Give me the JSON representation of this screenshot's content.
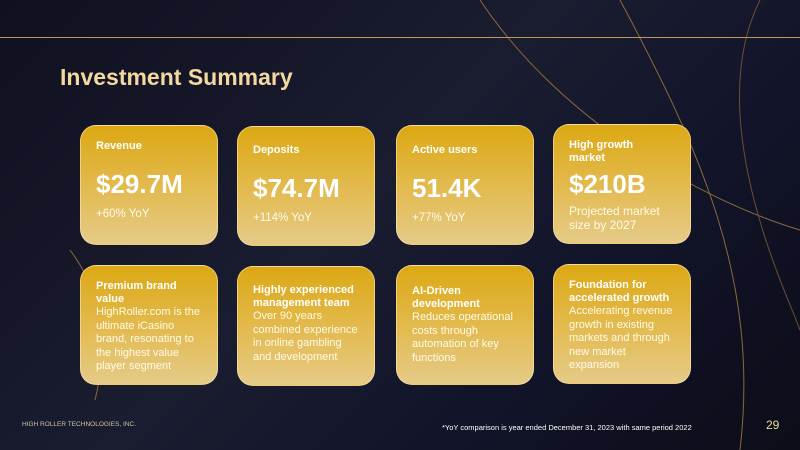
{
  "title": "Investment Summary",
  "metrics": [
    {
      "label": "Revenue",
      "value": "$29.7M",
      "sub": "+60% YoY"
    },
    {
      "label": "Deposits",
      "value": "$74.7M",
      "sub": "+114% YoY"
    },
    {
      "label": "Active users",
      "value": "51.4K",
      "sub": "+77% YoY"
    },
    {
      "label": "High growth market",
      "value": "$210B",
      "sub": "Projected market size by 2027"
    }
  ],
  "highlights": [
    {
      "label": "Premium brand value",
      "desc": "HighRoller.com is the ultimate iCasino brand, resonating to the highest value player segment"
    },
    {
      "label": "Highly experienced management team",
      "desc": "Over 90 years combined experience in online gambling and development"
    },
    {
      "label": "AI-Driven development",
      "desc": "Reduces operational costs through automation of key functions"
    },
    {
      "label": "Foundation for accelerated growth",
      "desc": "Accelerating revenue growth in existing markets and through new market expansion"
    }
  ],
  "footer": {
    "company": "HIGH ROLLER TECHNOLOGIES, INC.",
    "note": "*YoY comparison is year ended December 31, 2023 with same period 2022",
    "page": "29"
  }
}
